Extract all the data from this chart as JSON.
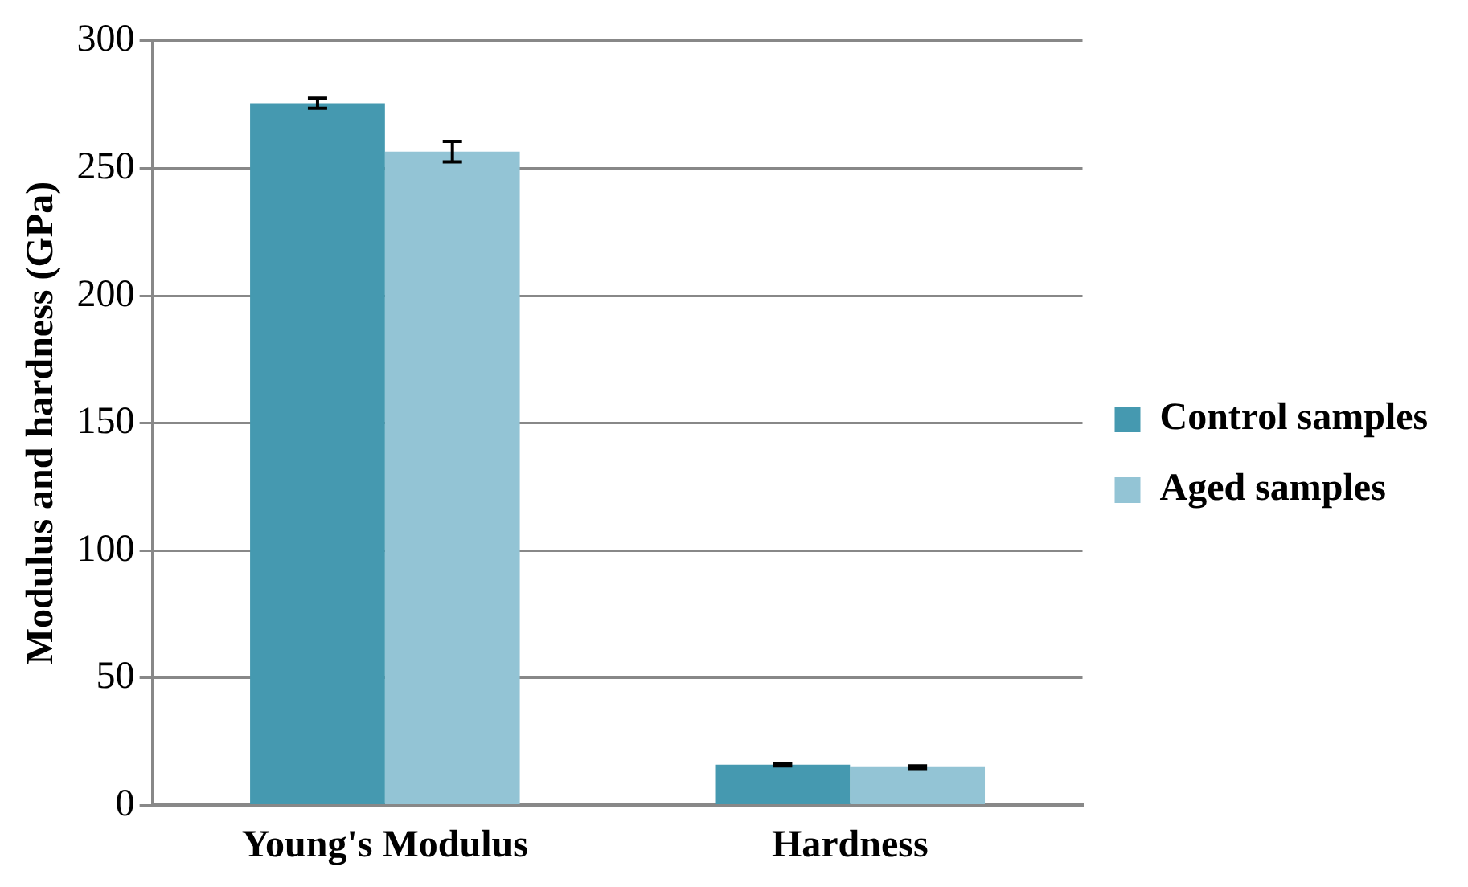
{
  "chart_data": {
    "type": "bar",
    "ylabel": "Modulus and hardness (GPa)",
    "categories": [
      "Young's Modulus",
      "Hardness"
    ],
    "series": [
      {
        "name": "Control samples",
        "color": "#4599b0",
        "values": [
          275.5,
          16
        ],
        "errors": [
          2,
          0.5
        ]
      },
      {
        "name": "Aged samples",
        "color": "#93c4d5",
        "values": [
          256.5,
          15
        ],
        "errors": [
          4,
          0.5
        ]
      }
    ],
    "ylim": [
      0,
      300
    ],
    "yticks": [
      0,
      50,
      100,
      150,
      200,
      250,
      300
    ],
    "grid": "y",
    "legend": "right"
  }
}
